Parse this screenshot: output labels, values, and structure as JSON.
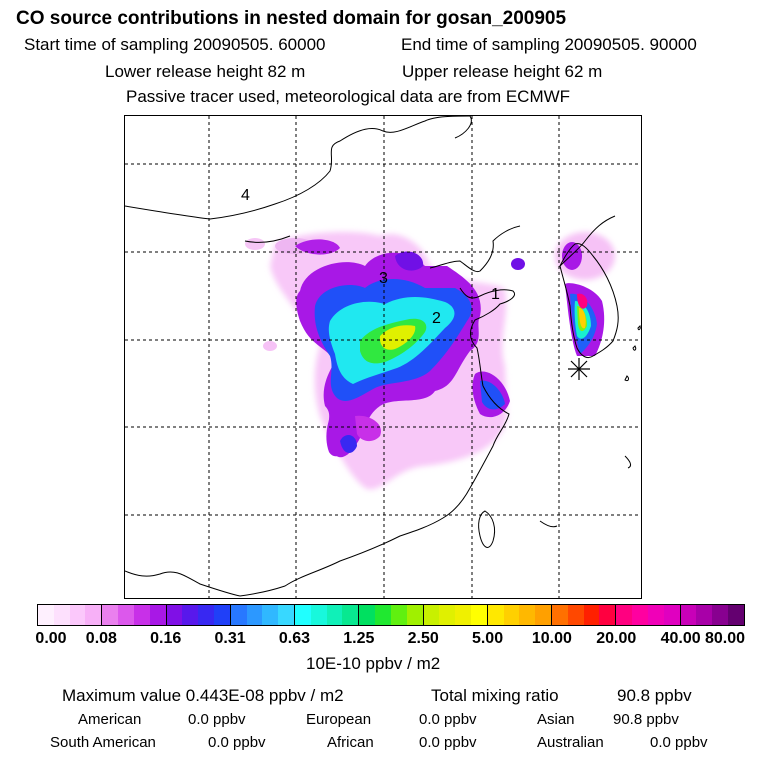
{
  "header": {
    "title": "CO  source contributions in nested domain for gosan_200905",
    "start_label": "Start time of sampling 20090505. 60000",
    "end_label": "End time of sampling 20090505. 90000",
    "lower_label": "Lower release height   82 m",
    "upper_label": "Upper release height   62 m",
    "note": "Passive tracer used, meteorological data are from ECMWF"
  },
  "map": {
    "region_labels": [
      "1",
      "2",
      "3",
      "4"
    ],
    "receptor_marker": "asterisk-icon"
  },
  "colorbar": {
    "tick_labels": [
      "0.00",
      "0.08",
      "0.16",
      "0.31",
      "0.63",
      "1.25",
      "2.50",
      "5.00",
      "10.00",
      "20.00",
      "40.00",
      "80.00"
    ],
    "units": "10E-10 ppbv / m2",
    "colors": [
      [
        "#fef0fe",
        "#fde0fd",
        "#fbc8fb",
        "#f7b0f7"
      ],
      [
        "#ea80ee",
        "#dc58ec",
        "#c830e8",
        "#a818e6"
      ],
      [
        "#8010e6",
        "#5818ec",
        "#3828f2",
        "#2040f8"
      ],
      [
        "#2878ff",
        "#2c98ff",
        "#30b8ff",
        "#38d8ff"
      ],
      [
        "#20ffff",
        "#18f8dc",
        "#10f0b8",
        "#08e890"
      ],
      [
        "#00e060",
        "#20e830",
        "#60f010",
        "#a0f000"
      ],
      [
        "#c8f000",
        "#e0f000",
        "#f0f000",
        "#ffff00"
      ],
      [
        "#ffe800",
        "#ffd000",
        "#ffb800",
        "#ffa000"
      ],
      [
        "#ff7000",
        "#ff4800",
        "#ff2000",
        "#ff0040"
      ],
      [
        "#ff0080",
        "#ff00a0",
        "#f000b8",
        "#e000c0"
      ],
      [
        "#c800b8",
        "#a800a8",
        "#880090",
        "#640070"
      ]
    ]
  },
  "summary": {
    "max_label": "Maximum value  0.443E-08 ppbv / m2",
    "total_label": "Total mixing ratio",
    "total_value": "90.8 ppbv",
    "regions": [
      {
        "name": "American",
        "value": "0.0 ppbv"
      },
      {
        "name": "European",
        "value": "0.0 ppbv"
      },
      {
        "name": "Asian",
        "value": "90.8 ppbv"
      },
      {
        "name": "South American",
        "value": "0.0 ppbv"
      },
      {
        "name": "African",
        "value": "0.0 ppbv"
      },
      {
        "name": "Australian",
        "value": "0.0 ppbv"
      }
    ]
  }
}
